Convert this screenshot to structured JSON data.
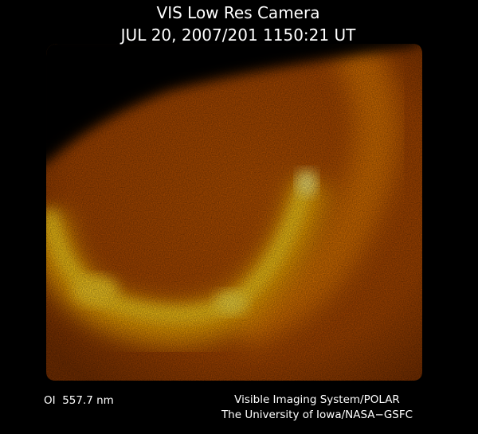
{
  "header": {
    "title": "VIS Low Res Camera",
    "timestamp": "JUL 20, 2007/201 1150:21 UT"
  },
  "footer": {
    "wavelength": "OI  557.7 nm",
    "system": "Visible Imaging System/POLAR",
    "institution": "The University of Iowa/NASA−GSFC"
  }
}
